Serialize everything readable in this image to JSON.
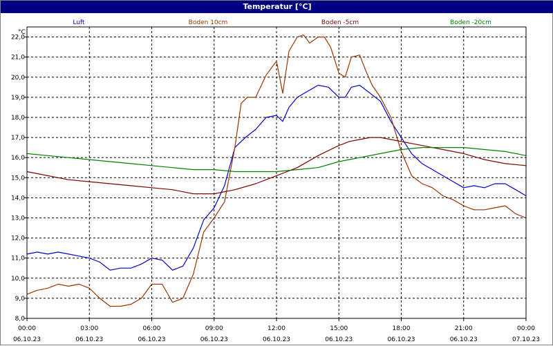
{
  "chart_data": {
    "type": "line",
    "title": "Temperatur [°C]",
    "ylabel": "°C",
    "ylim": [
      8.0,
      22.5
    ],
    "yticks": [
      "8,0",
      "9,0",
      "10,0",
      "11,0",
      "12,0",
      "13,0",
      "14,0",
      "15,0",
      "16,0",
      "17,0",
      "18,0",
      "19,0",
      "20,0",
      "21,0",
      "22,0"
    ],
    "xlim": [
      "06.10.23 00:00",
      "07.10.23 00:00"
    ],
    "xticks": [
      {
        "time": "00:00",
        "date": "06.10.23"
      },
      {
        "time": "03:00",
        "date": "06.10.23"
      },
      {
        "time": "06:00",
        "date": "06.10.23"
      },
      {
        "time": "09:00",
        "date": "06.10.23"
      },
      {
        "time": "12:00",
        "date": "06.10.23"
      },
      {
        "time": "15:00",
        "date": "06.10.23"
      },
      {
        "time": "18:00",
        "date": "06.10.23"
      },
      {
        "time": "21:00",
        "date": "06.10.23"
      },
      {
        "time": "00:00",
        "date": "07.10.23"
      }
    ],
    "grid": true,
    "legend_position": "top",
    "series": [
      {
        "name": "Luft",
        "color": "#0000cc",
        "x": [
          0,
          0.5,
          1,
          1.5,
          2,
          2.5,
          3,
          3.5,
          4,
          4.5,
          5,
          5.5,
          6,
          6.5,
          7,
          7.5,
          8,
          8.5,
          9,
          9.5,
          10,
          10.5,
          11,
          11.5,
          12,
          12.3,
          12.6,
          13,
          13.5,
          14,
          14.5,
          15,
          15.3,
          15.6,
          16,
          16.5,
          17,
          17.5,
          18,
          18.5,
          19,
          19.5,
          20,
          20.5,
          21,
          21.5,
          22,
          22.5,
          23,
          23.5,
          24
        ],
        "values": [
          11.2,
          11.3,
          11.2,
          11.3,
          11.2,
          11.1,
          11.0,
          10.8,
          10.4,
          10.5,
          10.5,
          10.7,
          11.0,
          10.9,
          10.4,
          10.6,
          11.5,
          12.9,
          13.5,
          14.6,
          16.5,
          17.0,
          17.4,
          18.0,
          18.1,
          17.8,
          18.5,
          19.0,
          19.3,
          19.6,
          19.5,
          19.0,
          19.0,
          19.5,
          19.6,
          19.2,
          18.8,
          17.8,
          17.0,
          16.2,
          15.7,
          15.4,
          15.1,
          14.8,
          14.5,
          14.6,
          14.5,
          14.7,
          14.7,
          14.4,
          14.1
        ]
      },
      {
        "name": "Boden 10cm",
        "color": "#993300",
        "x": [
          0,
          0.5,
          1,
          1.5,
          2,
          2.5,
          3,
          3.5,
          4,
          4.5,
          5,
          5.5,
          6,
          6.5,
          7,
          7.5,
          8,
          8.5,
          9,
          9.5,
          10,
          10.3,
          10.6,
          11,
          11.5,
          12,
          12.3,
          12.6,
          13,
          13.3,
          13.6,
          14,
          14.3,
          14.6,
          15,
          15.3,
          15.6,
          16,
          16.3,
          16.6,
          17,
          17.5,
          18,
          18.5,
          19,
          19.5,
          20,
          20.5,
          21,
          21.5,
          22,
          22.5,
          23,
          23.5,
          24
        ],
        "values": [
          9.2,
          9.4,
          9.5,
          9.7,
          9.6,
          9.7,
          9.5,
          9.0,
          8.6,
          8.6,
          8.7,
          9.0,
          9.7,
          9.7,
          8.8,
          9.0,
          10.2,
          12.3,
          13.0,
          13.8,
          16.5,
          18.7,
          19.0,
          19.0,
          20.1,
          20.8,
          19.2,
          21.3,
          22.0,
          22.1,
          21.7,
          22.0,
          22.0,
          21.5,
          20.2,
          20.0,
          21.0,
          21.1,
          20.3,
          19.6,
          19.0,
          18.0,
          16.3,
          15.1,
          14.7,
          14.5,
          14.1,
          13.9,
          13.6,
          13.4,
          13.4,
          13.5,
          13.6,
          13.2,
          13.0
        ]
      },
      {
        "name": "Boden -5cm",
        "color": "#800000",
        "x": [
          0,
          1,
          2,
          3,
          4,
          5,
          6,
          7,
          8,
          9,
          10,
          11,
          12,
          13,
          14,
          15,
          15.5,
          16,
          16.5,
          17,
          17.5,
          18,
          19,
          20,
          21,
          22,
          23,
          24
        ],
        "values": [
          15.3,
          15.1,
          14.9,
          14.8,
          14.7,
          14.6,
          14.5,
          14.4,
          14.2,
          14.2,
          14.4,
          14.7,
          15.1,
          15.5,
          16.1,
          16.6,
          16.8,
          16.9,
          17.0,
          17.0,
          16.9,
          16.8,
          16.6,
          16.4,
          16.2,
          15.9,
          15.7,
          15.6
        ]
      },
      {
        "name": "Boden -20cm",
        "color": "#008000",
        "x": [
          0,
          1,
          2,
          3,
          4,
          5,
          6,
          7,
          8,
          9,
          10,
          11,
          12,
          13,
          14,
          15,
          16,
          17,
          18,
          19,
          20,
          21,
          22,
          23,
          24
        ],
        "values": [
          16.2,
          16.1,
          16.0,
          15.9,
          15.8,
          15.7,
          15.6,
          15.5,
          15.4,
          15.4,
          15.3,
          15.3,
          15.3,
          15.4,
          15.5,
          15.8,
          16.0,
          16.2,
          16.4,
          16.5,
          16.5,
          16.5,
          16.4,
          16.3,
          16.1
        ]
      }
    ]
  }
}
